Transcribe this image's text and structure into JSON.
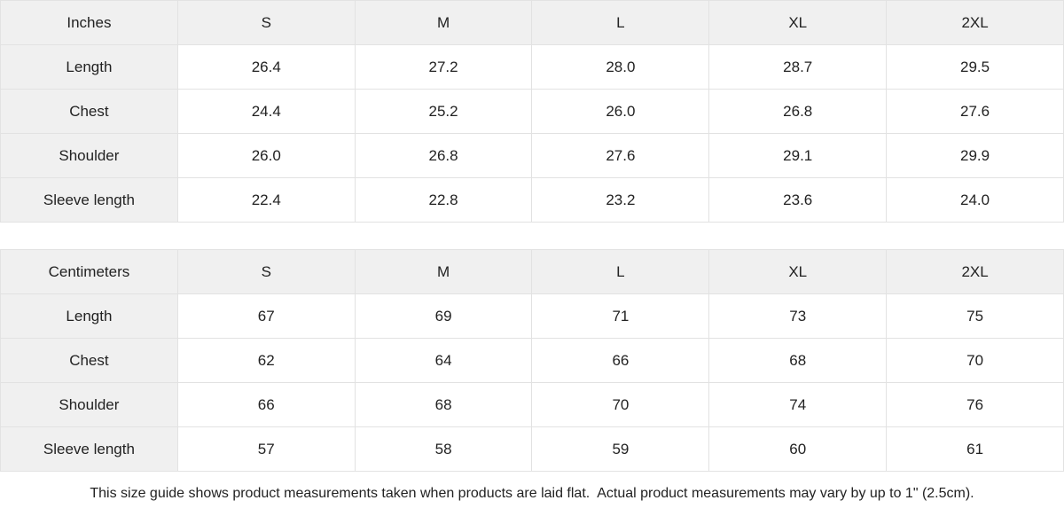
{
  "page": {
    "footer_note": "This size guide shows product measurements taken when products are laid flat.  Actual product measurements may vary by up to 1\" (2.5cm)."
  },
  "colors": {
    "header_bg": "#f0f0f0",
    "border": "#e2e2e2",
    "text": "#222222",
    "cell_bg": "#ffffff"
  },
  "tables": [
    {
      "name": "inches",
      "unit_label": "Inches",
      "columns": [
        "S",
        "M",
        "L",
        "XL",
        "2XL"
      ],
      "rows": [
        {
          "label": "Length",
          "values": [
            "26.4",
            "27.2",
            "28.0",
            "28.7",
            "29.5"
          ]
        },
        {
          "label": "Chest",
          "values": [
            "24.4",
            "25.2",
            "26.0",
            "26.8",
            "27.6"
          ]
        },
        {
          "label": "Shoulder",
          "values": [
            "26.0",
            "26.8",
            "27.6",
            "29.1",
            "29.9"
          ]
        },
        {
          "label": "Sleeve length",
          "values": [
            "22.4",
            "22.8",
            "23.2",
            "23.6",
            "24.0"
          ]
        }
      ]
    },
    {
      "name": "centimeters",
      "unit_label": "Centimeters",
      "columns": [
        "S",
        "M",
        "L",
        "XL",
        "2XL"
      ],
      "rows": [
        {
          "label": "Length",
          "values": [
            "67",
            "69",
            "71",
            "73",
            "75"
          ]
        },
        {
          "label": "Chest",
          "values": [
            "62",
            "64",
            "66",
            "68",
            "70"
          ]
        },
        {
          "label": "Shoulder",
          "values": [
            "66",
            "68",
            "70",
            "74",
            "76"
          ]
        },
        {
          "label": "Sleeve length",
          "values": [
            "57",
            "58",
            "59",
            "60",
            "61"
          ]
        }
      ]
    }
  ]
}
